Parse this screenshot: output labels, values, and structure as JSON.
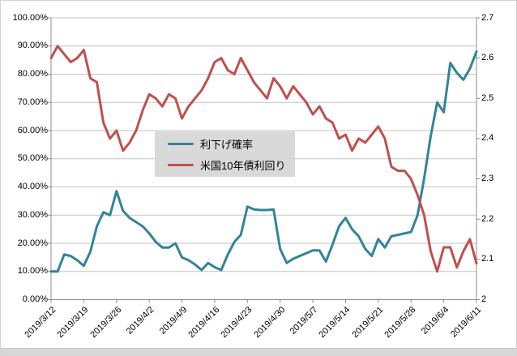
{
  "chart_data": {
    "type": "line",
    "title": "",
    "grid": "horizontal",
    "legend_position": "center-left-inside",
    "x_tick_labels": [
      "2019/3/12",
      "2019/3/19",
      "2019/3/26",
      "2019/4/2",
      "2019/4/9",
      "2019/4/16",
      "2019/4/23",
      "2019/4/30",
      "2019/5/7",
      "2019/5/14",
      "2019/5/21",
      "2019/5/28",
      "2019/6/4",
      "2019/6/11"
    ],
    "dates": [
      "2019/3/12",
      "2019/3/13",
      "2019/3/14",
      "2019/3/15",
      "2019/3/18",
      "2019/3/19",
      "2019/3/20",
      "2019/3/21",
      "2019/3/22",
      "2019/3/25",
      "2019/3/26",
      "2019/3/27",
      "2019/3/28",
      "2019/3/29",
      "2019/4/1",
      "2019/4/2",
      "2019/4/3",
      "2019/4/4",
      "2019/4/5",
      "2019/4/8",
      "2019/4/9",
      "2019/4/10",
      "2019/4/11",
      "2019/4/12",
      "2019/4/15",
      "2019/4/16",
      "2019/4/17",
      "2019/4/18",
      "2019/4/19",
      "2019/4/22",
      "2019/4/23",
      "2019/4/24",
      "2019/4/25",
      "2019/4/26",
      "2019/4/29",
      "2019/4/30",
      "2019/5/1",
      "2019/5/2",
      "2019/5/3",
      "2019/5/6",
      "2019/5/7",
      "2019/5/8",
      "2019/5/9",
      "2019/5/10",
      "2019/5/13",
      "2019/5/14",
      "2019/5/15",
      "2019/5/16",
      "2019/5/17",
      "2019/5/20",
      "2019/5/21",
      "2019/5/22",
      "2019/5/23",
      "2019/5/24",
      "2019/5/27",
      "2019/5/28",
      "2019/5/29",
      "2019/5/30",
      "2019/5/31",
      "2019/6/3",
      "2019/6/4",
      "2019/6/5",
      "2019/6/6",
      "2019/6/7",
      "2019/6/10",
      "2019/6/11"
    ],
    "series": [
      {
        "name": "利下げ確率",
        "axis": "left",
        "unit": "%",
        "color": "#31849B",
        "values": [
          10,
          10,
          16,
          15.5,
          14,
          12,
          17,
          26,
          31,
          30,
          38.5,
          31.5,
          29,
          27.5,
          26,
          23.5,
          20.5,
          18.5,
          18.5,
          20,
          15,
          14,
          12.5,
          10.5,
          13,
          11.5,
          10.5,
          16,
          20.5,
          23,
          33,
          32,
          31.8,
          31.8,
          32,
          18,
          13,
          14.5,
          15.5,
          16.5,
          17.5,
          17.5,
          13.5,
          19.5,
          26,
          29,
          25,
          22.5,
          18,
          15.5,
          21.5,
          18.5,
          22.5,
          23,
          23.5,
          24,
          30,
          43,
          58,
          70,
          66.5,
          84,
          80.5,
          78,
          82,
          88
        ]
      },
      {
        "name": "米国10年債利回り",
        "axis": "right",
        "unit": "",
        "color": "#C0504D",
        "values": [
          2.6,
          2.63,
          2.61,
          2.59,
          2.6,
          2.62,
          2.55,
          2.54,
          2.44,
          2.4,
          2.42,
          2.37,
          2.39,
          2.42,
          2.47,
          2.51,
          2.5,
          2.48,
          2.51,
          2.5,
          2.45,
          2.48,
          2.5,
          2.52,
          2.55,
          2.59,
          2.6,
          2.57,
          2.56,
          2.6,
          2.57,
          2.54,
          2.52,
          2.5,
          2.55,
          2.53,
          2.5,
          2.53,
          2.51,
          2.49,
          2.46,
          2.48,
          2.45,
          2.44,
          2.4,
          2.41,
          2.37,
          2.4,
          2.39,
          2.41,
          2.43,
          2.4,
          2.33,
          2.32,
          2.32,
          2.3,
          2.26,
          2.21,
          2.12,
          2.07,
          2.13,
          2.13,
          2.08,
          2.12,
          2.15,
          2.09
        ]
      }
    ],
    "left_axis": {
      "min": 0,
      "max": 100,
      "step": 10,
      "format": "percent",
      "labels": [
        "100.00%",
        "90.00%",
        "80.00%",
        "70.00%",
        "60.00%",
        "50.00%",
        "40.00%",
        "30.00%",
        "20.00%",
        "10.00%",
        "0.00%"
      ]
    },
    "right_axis": {
      "min": 2.0,
      "max": 2.7,
      "step": 0.1,
      "labels": [
        "2.7",
        "2.6",
        "2.5",
        "2.4",
        "2.3",
        "2.2",
        "2.1",
        "2"
      ]
    },
    "colors": {
      "gridline": "#c3c3c3",
      "axis": "#8c8c8c",
      "legend_bg": "#d9d9d9",
      "plot_bg": "#ffffff"
    }
  }
}
